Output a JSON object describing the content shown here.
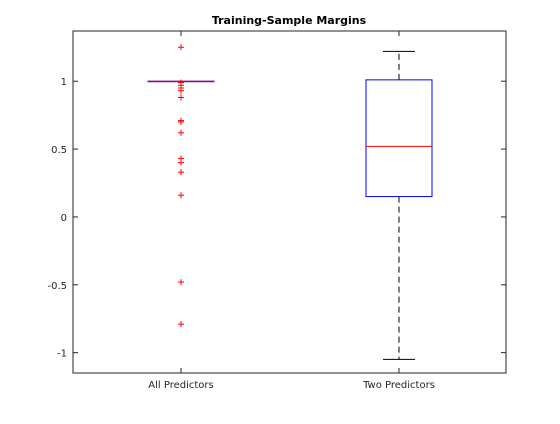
{
  "chart_data": {
    "type": "boxplot",
    "title": "Training-Sample Margins",
    "xlabel": "",
    "ylabel": "",
    "ylim": [
      -1.15,
      1.37
    ],
    "yticks": [
      -1,
      -0.5,
      0,
      0.5,
      1
    ],
    "ytick_labels": [
      "-1",
      "-0.5",
      "0",
      "0.5",
      "1"
    ],
    "grid": false,
    "categories": [
      "All Predictors",
      "Two Predictors"
    ],
    "boxes": [
      {
        "category": "All Predictors",
        "q1": 1.0,
        "median": 1.0,
        "q3": 1.0,
        "whisker_low": 1.0,
        "whisker_high": 1.0,
        "outliers": [
          1.25,
          0.99,
          0.97,
          0.95,
          0.93,
          0.88,
          0.71,
          0.7,
          0.62,
          0.43,
          0.4,
          0.33,
          0.16,
          -0.48,
          -0.79
        ]
      },
      {
        "category": "Two Predictors",
        "q1": 0.15,
        "median": 0.52,
        "q3": 1.01,
        "whisker_low": -1.05,
        "whisker_high": 1.22,
        "outliers": []
      }
    ],
    "colors": {
      "box": "#0000ff",
      "median": "#ff0000",
      "whisker": "#000000",
      "outlier": "#ff0000",
      "axes": "#262626"
    }
  }
}
